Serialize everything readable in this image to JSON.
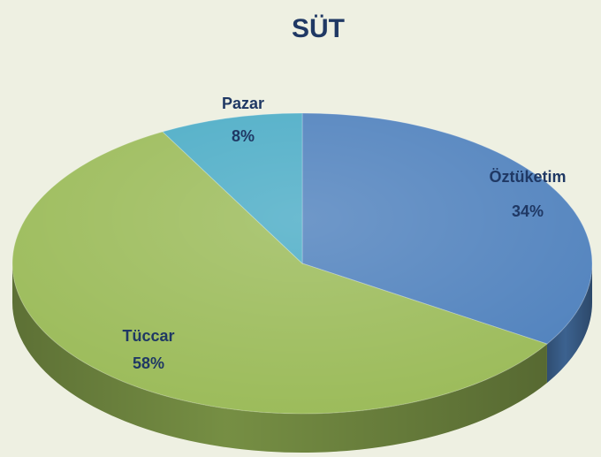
{
  "chart_data": {
    "type": "pie",
    "title": "SÜT",
    "categories": [
      "Öztüketim",
      "Tüccar",
      "Pazar"
    ],
    "values": [
      34,
      58,
      8
    ],
    "value_labels": [
      "34%",
      "58%",
      "8%"
    ],
    "colors": [
      "#4f81bd",
      "#9bbb59",
      "#4bacc6"
    ]
  }
}
